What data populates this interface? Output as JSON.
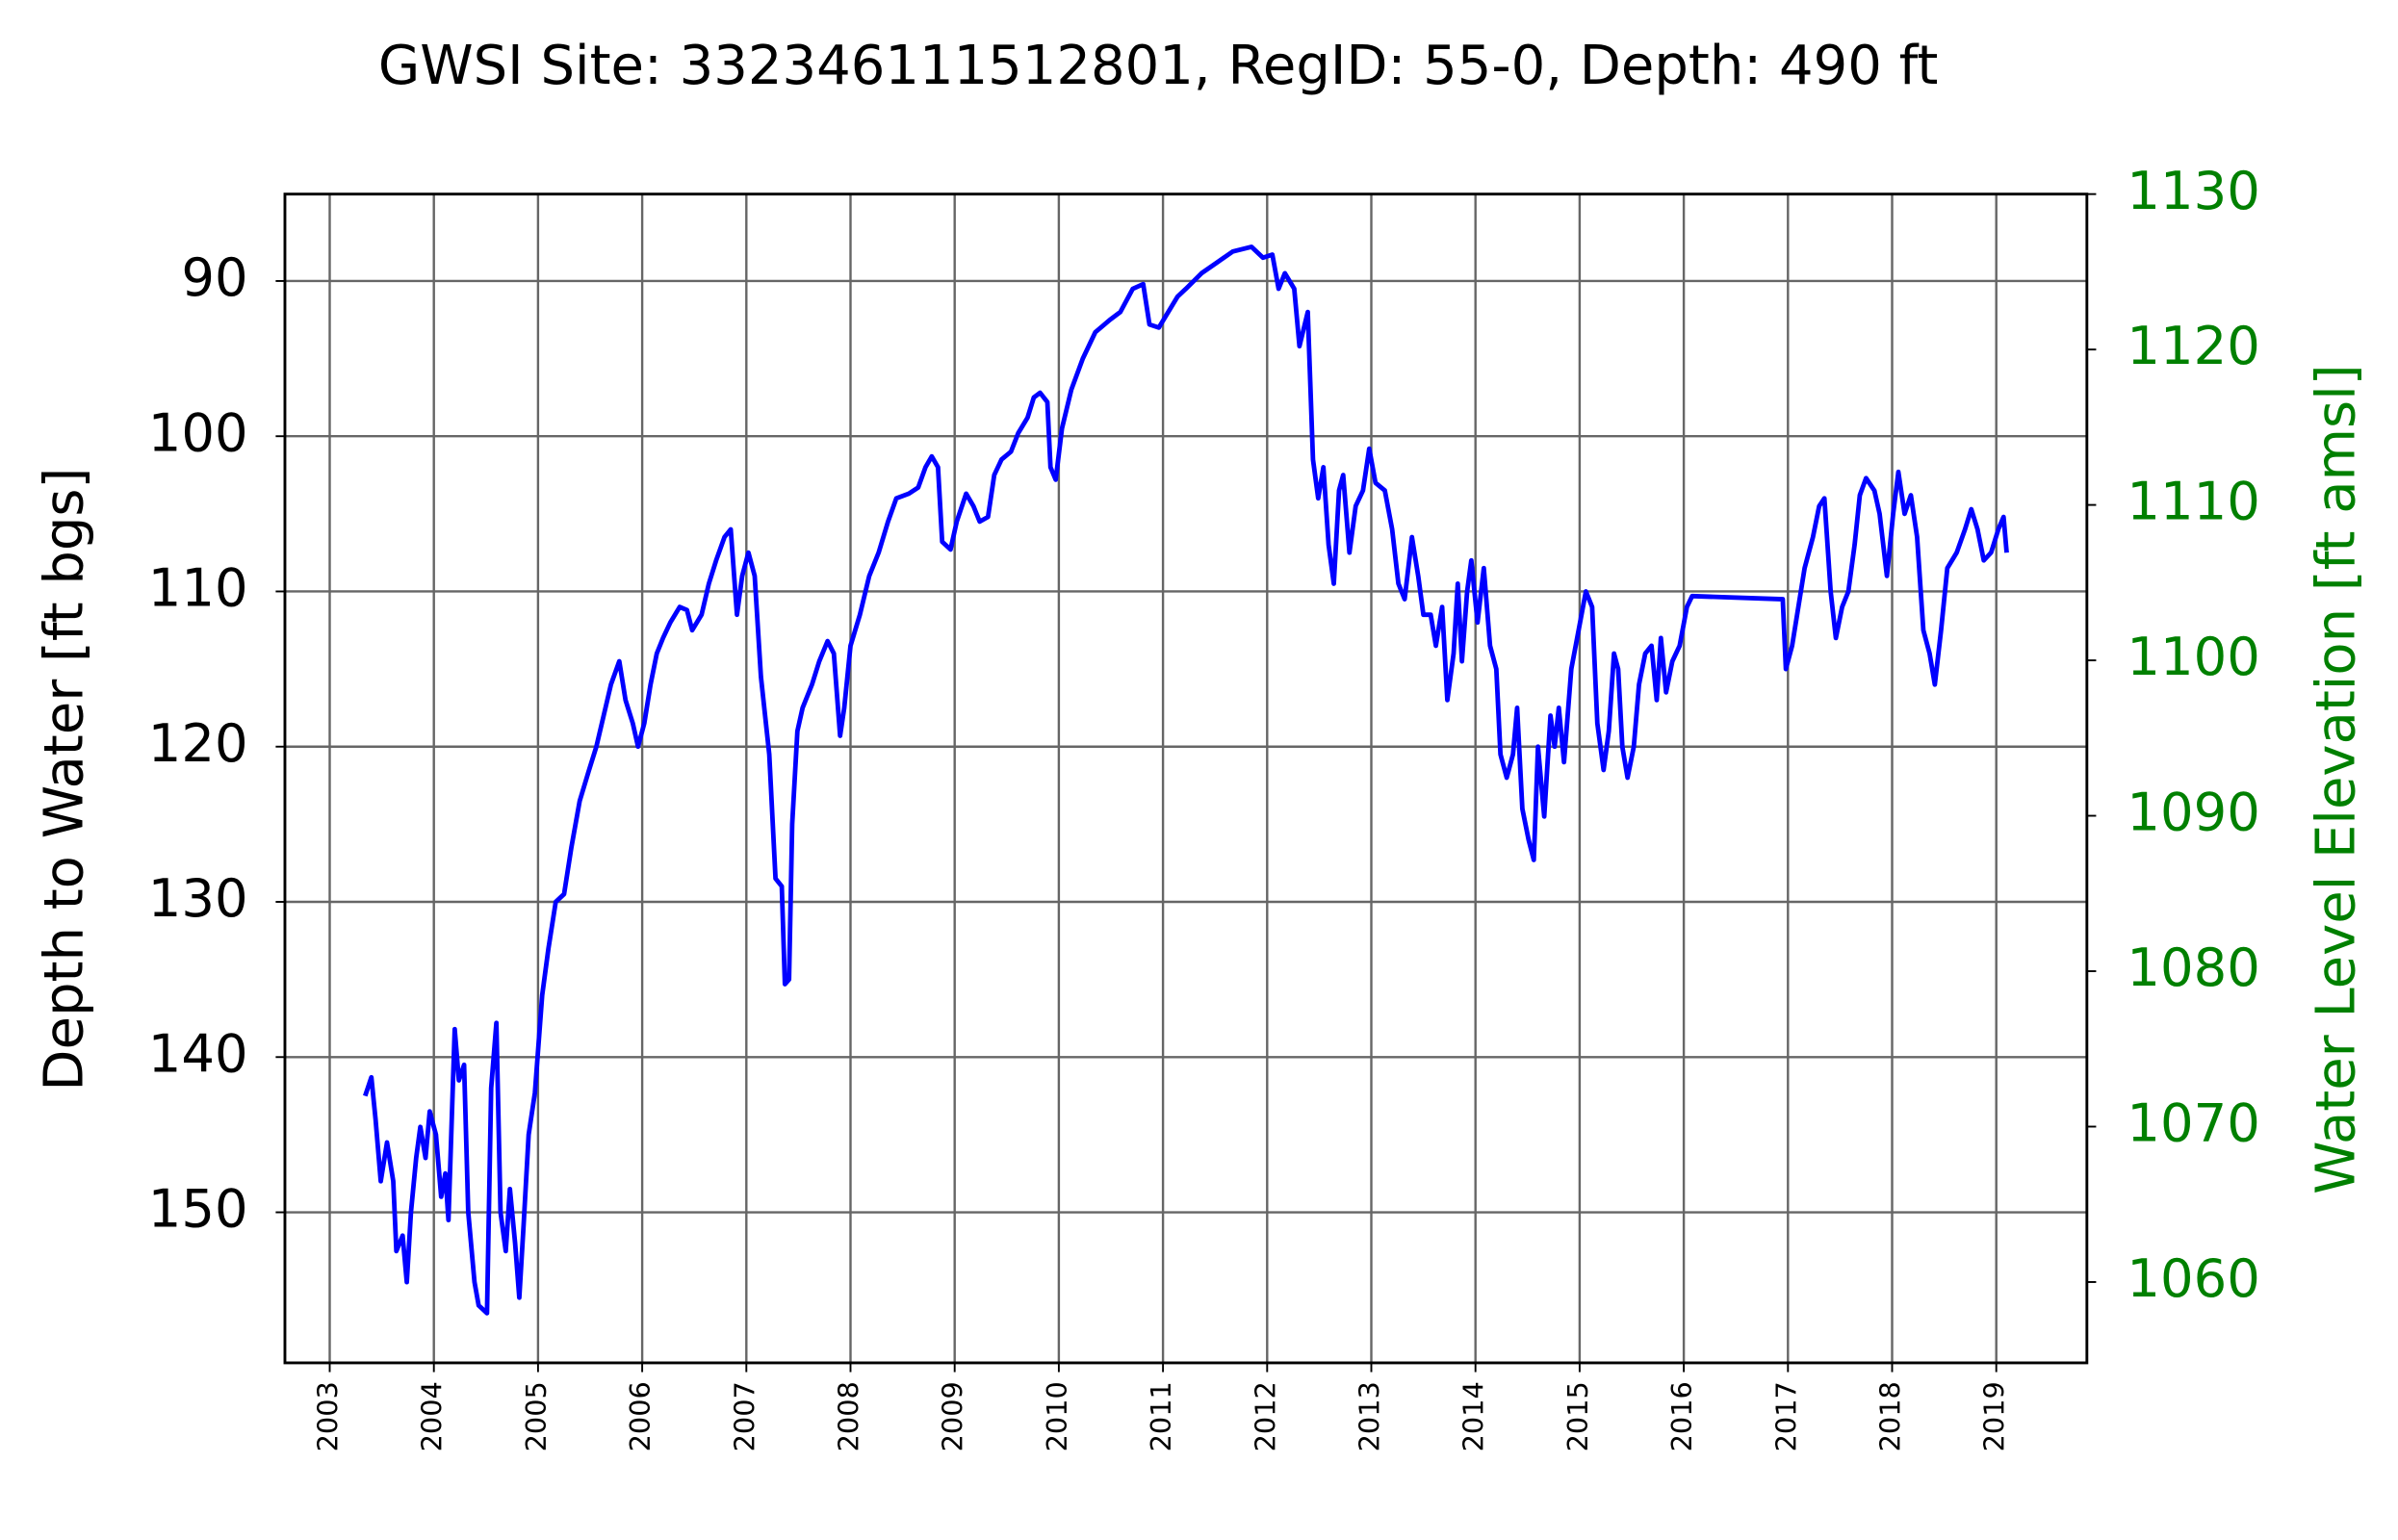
{
  "chart_data": {
    "type": "line",
    "title": "GWSI Site: 332346111512801, RegID: 55-0, Depth: 490 ft",
    "ylabel": "Depth to Water [ft bgs]",
    "y2label": "Water Level Elevation [ft amsl]",
    "xlim": [
      2002.57,
      2019.87
    ],
    "xticks": [
      2003,
      2004,
      2005,
      2006,
      2007,
      2008,
      2009,
      2010,
      2011,
      2012,
      2013,
      2014,
      2015,
      2016,
      2017,
      2018,
      2019
    ],
    "ylim": [
      84.4,
      159.7
    ],
    "y_inverted": true,
    "yticks": [
      90,
      100,
      110,
      120,
      130,
      140,
      150
    ],
    "y2lim": [
      1054.8,
      1130
    ],
    "y2ticks": [
      1060,
      1070,
      1080,
      1090,
      1100,
      1110,
      1120,
      1130
    ],
    "y2color": "#008000",
    "grid": true,
    "x": [
      2003.34,
      2003.4,
      2003.44,
      2003.49,
      2003.55,
      2003.61,
      2003.64,
      2003.7,
      2003.74,
      2003.78,
      2003.83,
      2003.87,
      2003.92,
      2003.96,
      2004.02,
      2004.07,
      2004.11,
      2004.14,
      2004.2,
      2004.24,
      2004.29,
      2004.33,
      2004.39,
      2004.43,
      2004.51,
      2004.55,
      2004.6,
      2004.64,
      2004.69,
      2004.73,
      2004.78,
      2004.82,
      2004.86,
      2004.91,
      2004.97,
      2005.04,
      2005.1,
      2005.17,
      2005.25,
      2005.32,
      2005.4,
      2005.49,
      2005.56,
      2005.63,
      2005.7,
      2005.78,
      2005.84,
      2005.91,
      2005.96,
      2006.02,
      2006.08,
      2006.14,
      2006.2,
      2006.27,
      2006.36,
      2006.43,
      2006.48,
      2006.57,
      2006.64,
      2006.71,
      2006.79,
      2006.85,
      2006.91,
      2006.96,
      2007.02,
      2007.08,
      2007.14,
      2007.22,
      2007.28,
      2007.34,
      2007.37,
      2007.41,
      2007.44,
      2007.49,
      2007.54,
      2007.63,
      2007.7,
      2007.78,
      2007.84,
      2007.9,
      2007.94,
      2008.0,
      2008.09,
      2008.18,
      2008.27,
      2008.36,
      2008.44,
      2008.56,
      2008.65,
      2008.72,
      2008.78,
      2008.84,
      2008.88,
      2008.96,
      2009.02,
      2009.11,
      2009.18,
      2009.24,
      2009.32,
      2009.38,
      2009.45,
      2009.54,
      2009.61,
      2009.7,
      2009.76,
      2009.82,
      2009.89,
      2009.92,
      2009.97,
      2010.03,
      2010.12,
      2010.23,
      2010.35,
      2010.49,
      2010.59,
      2010.71,
      2010.81,
      2010.87,
      2010.96,
      2011.05,
      2011.14,
      2011.22,
      2011.37,
      2011.52,
      2011.67,
      2011.85,
      2011.96,
      2012.05,
      2012.11,
      2012.17,
      2012.26,
      2012.31,
      2012.39,
      2012.44,
      2012.49,
      2012.54,
      2012.59,
      2012.64,
      2012.69,
      2012.73,
      2012.79,
      2012.85,
      2012.92,
      2012.98,
      2013.04,
      2013.13,
      2013.2,
      2013.26,
      2013.32,
      2013.39,
      2013.45,
      2013.5,
      2013.57,
      2013.62,
      2013.68,
      2013.73,
      2013.79,
      2013.83,
      2013.87,
      2013.92,
      2013.96,
      2014.02,
      2014.08,
      2014.14,
      2014.2,
      2014.24,
      2014.3,
      2014.36,
      2014.4,
      2014.45,
      2014.51,
      2014.56,
      2014.6,
      2014.66,
      2014.72,
      2014.76,
      2014.8,
      2014.85,
      2014.92,
      2014.99,
      2015.06,
      2015.12,
      2015.17,
      2015.23,
      2015.28,
      2015.33,
      2015.37,
      2015.41,
      2015.46,
      2015.52,
      2015.57,
      2015.63,
      2015.69,
      2015.74,
      2015.78,
      2015.83,
      2015.89,
      2015.96,
      2016.03,
      2016.08,
      2016.95,
      2016.98,
      2017.04,
      2017.1,
      2017.16,
      2017.24,
      2017.3,
      2017.35,
      2017.41,
      2017.46,
      2017.52,
      2017.58,
      2017.64,
      2017.69,
      2017.75,
      2017.83,
      2017.88,
      2017.95,
      2018.01,
      2018.06,
      2018.12,
      2018.18,
      2018.24,
      2018.3,
      2018.36,
      2018.41,
      2018.47,
      2018.53,
      2018.62,
      2018.7,
      2018.76,
      2018.82,
      2018.88,
      2018.95,
      2019.02,
      2019.07,
      2019.1
    ],
    "series": [
      {
        "color": "#0000ff",
        "values": [
          142.5,
          141.3,
          144,
          148,
          145.5,
          148,
          152.5,
          151.5,
          154.5,
          150,
          146.5,
          144.5,
          146.5,
          143.5,
          145,
          149,
          147.5,
          150.5,
          138.2,
          141.5,
          140.5,
          150,
          154.5,
          156,
          156.5,
          142,
          137.8,
          150,
          152.5,
          148.5,
          152,
          155.5,
          151,
          145,
          142.3,
          136,
          133,
          130,
          129.5,
          126.5,
          123.5,
          121.5,
          120,
          118,
          116,
          114.5,
          117,
          118.5,
          120,
          118.5,
          116,
          114,
          113,
          112,
          111,
          111.2,
          112.5,
          111.5,
          109.5,
          108,
          106.5,
          106,
          111.5,
          109,
          107.5,
          109,
          115.5,
          120.5,
          128.5,
          129,
          135.3,
          135,
          125,
          119,
          117.5,
          116,
          114.5,
          113.2,
          114,
          119.3,
          117.5,
          113.5,
          111.5,
          109,
          107.5,
          105.5,
          104,
          103.7,
          103.3,
          102,
          101.3,
          102,
          106.8,
          107.3,
          105.5,
          103.7,
          104.5,
          105.5,
          105.2,
          102.5,
          101.5,
          101,
          99.8,
          98.8,
          97.5,
          97.2,
          97.8,
          102,
          102.8,
          99.5,
          97,
          95,
          93.3,
          92.5,
          92,
          90.5,
          90.2,
          92.8,
          93,
          92,
          91,
          90.5,
          89.5,
          88.8,
          88.1,
          87.8,
          88.5,
          88.3,
          90.5,
          89.5,
          90.5,
          94.2,
          92,
          101.5,
          104,
          102,
          107,
          109.5,
          103.5,
          102.5,
          107.5,
          104.5,
          103.5,
          100.8,
          103,
          103.5,
          106,
          109.5,
          110.5,
          106.5,
          109,
          111.5,
          111.5,
          113.5,
          111,
          117,
          114,
          109.5,
          114.5,
          110,
          108,
          112,
          108.5,
          113.5,
          115,
          120.5,
          122,
          120.5,
          117.5,
          124,
          126,
          127.3,
          120,
          124.5,
          118,
          120,
          117.5,
          121,
          115,
          112.5,
          110,
          111,
          118.5,
          121.5,
          119,
          114,
          115,
          120,
          122,
          120,
          116,
          114,
          113.5,
          117,
          113,
          116.5,
          114.5,
          113.5,
          111,
          110.3,
          110.5,
          115,
          113.5,
          111,
          108.5,
          106.5,
          104.5,
          104,
          110,
          113,
          111,
          110,
          107,
          103.8,
          102.7,
          103.5,
          105,
          109,
          105,
          102.3,
          105,
          103.8,
          106.5,
          112.5,
          114,
          116,
          112.5,
          108.5,
          107.5,
          106,
          104.7,
          106,
          108,
          107.5,
          106,
          105.2,
          107.5
        ]
      }
    ]
  }
}
